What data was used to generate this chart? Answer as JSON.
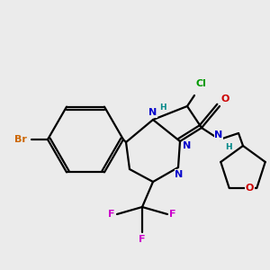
{
  "bg_color": "#ebebeb",
  "bond_color": "#000000",
  "bond_width": 1.6,
  "atom_colors": {
    "Br": "#cc6600",
    "N": "#0000cc",
    "H_color": "#008888",
    "Cl": "#009900",
    "O": "#cc0000",
    "F": "#cc00cc",
    "C": "#000000"
  },
  "font_size": 8.0,
  "font_size_small": 6.5
}
